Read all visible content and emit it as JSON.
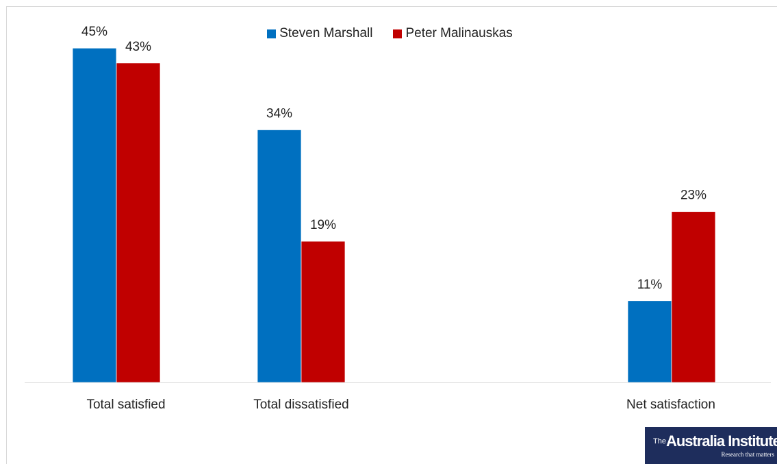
{
  "chart_data": {
    "type": "bar",
    "categories": [
      "Total satisfied",
      "Total dissatisfied",
      "Net satisfaction"
    ],
    "series": [
      {
        "name": "Steven Marshall",
        "color": "#0070c0",
        "values": [
          45,
          34,
          11
        ]
      },
      {
        "name": "Peter Malinauskas",
        "color": "#c00000",
        "values": [
          43,
          19,
          23
        ]
      }
    ],
    "value_suffix": "%",
    "ylim": [
      0,
      50
    ],
    "grid": false,
    "legend_position": "top-center"
  },
  "logo": {
    "the": "The",
    "name": "Australia Institute",
    "tagline": "Research that matters"
  }
}
